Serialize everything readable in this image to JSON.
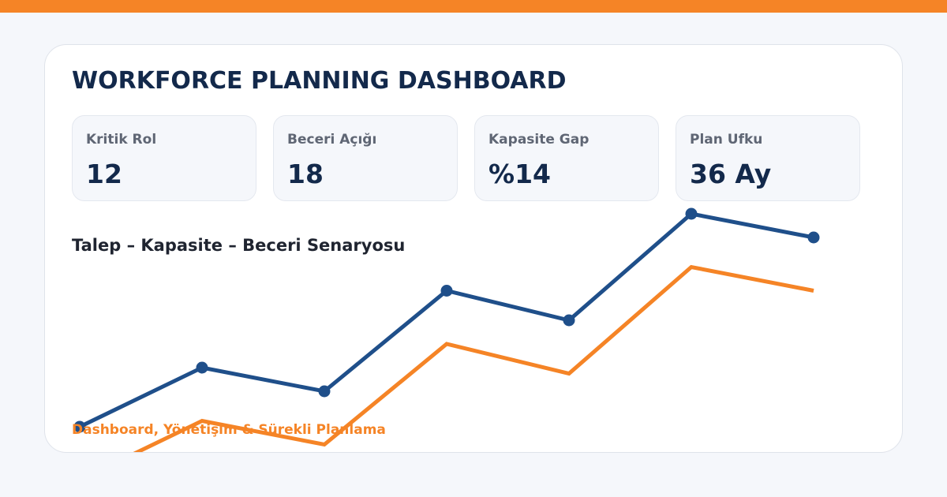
{
  "dashboard": {
    "title": "WORKFORCE PLANNING DASHBOARD",
    "footer": "Dashboard, Yönetişim & Sürekli Planlama"
  },
  "kpis": [
    {
      "label": "Kritik Rol",
      "value": "12"
    },
    {
      "label": "Beceri Açığı",
      "value": "18"
    },
    {
      "label": "Kapasite Gap",
      "value": "%14"
    },
    {
      "label": "Plan Ufku",
      "value": "36 Ay"
    }
  ],
  "colors": {
    "accent": "#f58426",
    "primary_series": "#1f4f8a",
    "title": "#13294b"
  },
  "chart_data": {
    "type": "line",
    "title": "Talep – Kapasite – Beceri Senaryosu",
    "xlabel": "",
    "ylabel": "",
    "x": [
      1,
      2,
      3,
      4,
      5,
      6,
      7
    ],
    "ylim": [
      0,
      100
    ],
    "grid": false,
    "legend": "none",
    "series": [
      {
        "values": [
          20,
          45,
          35,
          77.5,
          65,
          110,
          100
        ],
        "color": "#1f4f8a",
        "markers": true
      },
      {
        "values": [
          -2.5,
          22.5,
          12.5,
          55,
          42.5,
          87.5,
          77.5
        ],
        "color": "#f58426",
        "markers": false
      }
    ]
  }
}
